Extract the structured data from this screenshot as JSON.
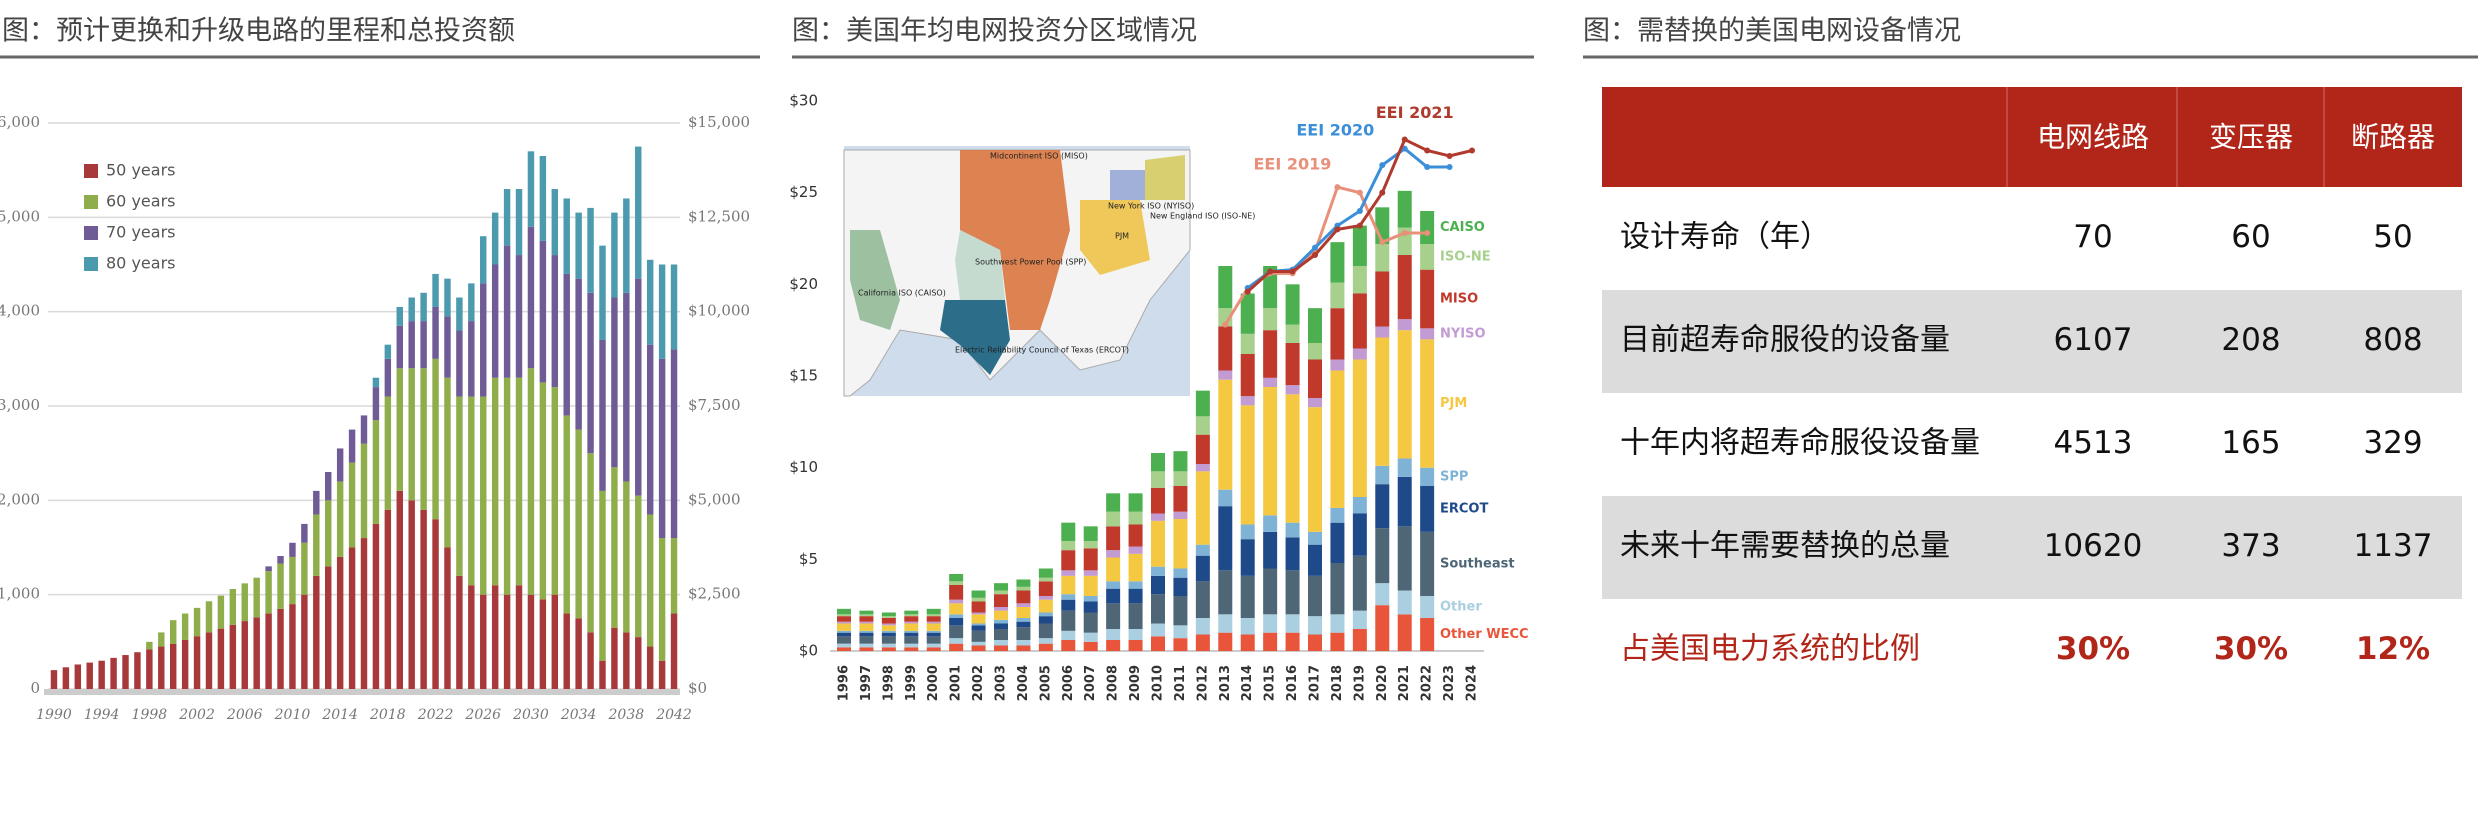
{
  "chart_data": [
    {
      "type": "bar",
      "stacked": true,
      "title": "图：预计更换和升级电路的里程和总投资额",
      "categories": [
        "1990",
        null,
        null,
        null,
        "1994",
        null,
        null,
        null,
        "1998",
        null,
        null,
        null,
        "2002",
        null,
        null,
        null,
        "2006",
        null,
        null,
        null,
        "2010",
        null,
        null,
        null,
        "2014",
        null,
        null,
        null,
        "2018",
        null,
        null,
        null,
        "2022",
        null,
        null,
        null,
        "2026",
        null,
        null,
        null,
        "2030",
        null,
        null,
        null,
        "2034",
        null,
        null,
        null,
        "2038",
        null,
        null,
        null,
        "2042"
      ],
      "series": [
        {
          "name": "50 years",
          "color": "#a8393b",
          "values": [
            200,
            230,
            260,
            280,
            300,
            330,
            360,
            390,
            420,
            450,
            480,
            520,
            560,
            600,
            640,
            680,
            720,
            760,
            800,
            850,
            900,
            1000,
            1200,
            1300,
            1400,
            1500,
            1600,
            1750,
            1900,
            2100,
            2000,
            1900,
            1800,
            1500,
            1200,
            1100,
            1000,
            1100,
            1000,
            1100,
            1000,
            950,
            1000,
            800,
            750,
            600,
            300,
            650,
            600,
            550,
            450,
            300,
            800
          ]
        },
        {
          "name": "60 years",
          "color": "#8fae4b",
          "values": [
            0,
            0,
            0,
            0,
            0,
            0,
            0,
            0,
            80,
            150,
            250,
            280,
            300,
            330,
            350,
            380,
            400,
            420,
            450,
            480,
            500,
            550,
            650,
            700,
            800,
            900,
            1000,
            1100,
            1200,
            1300,
            1400,
            1500,
            1700,
            1800,
            1900,
            2000,
            2100,
            2200,
            2300,
            2200,
            2400,
            2300,
            2200,
            2100,
            2000,
            1900,
            1800,
            1700,
            1600,
            1500,
            1400,
            1300,
            800
          ]
        },
        {
          "name": "70 years",
          "color": "#6f5b95",
          "values": [
            0,
            0,
            0,
            0,
            0,
            0,
            0,
            0,
            0,
            0,
            0,
            0,
            0,
            0,
            0,
            0,
            0,
            0,
            50,
            80,
            150,
            200,
            250,
            300,
            350,
            350,
            300,
            350,
            400,
            450,
            500,
            500,
            550,
            650,
            700,
            800,
            1200,
            1200,
            1400,
            1300,
            1500,
            1500,
            1400,
            1500,
            1600,
            1700,
            1600,
            1800,
            2000,
            2300,
            1800,
            1900,
            2000
          ]
        },
        {
          "name": "80 years",
          "color": "#4b9aae",
          "values": [
            0,
            0,
            0,
            0,
            0,
            0,
            0,
            0,
            0,
            0,
            0,
            0,
            0,
            0,
            0,
            0,
            0,
            0,
            0,
            0,
            0,
            0,
            0,
            0,
            0,
            0,
            0,
            100,
            150,
            200,
            250,
            300,
            350,
            400,
            350,
            400,
            500,
            550,
            600,
            700,
            800,
            900,
            700,
            800,
            700,
            900,
            1000,
            900,
            1000,
            1400,
            900,
            1000,
            900
          ]
        }
      ],
      "ylim": [
        0,
        6000
      ],
      "yticks": [
        0,
        {
          "value": 1000,
          "label": "1,000"
        },
        {
          "value": 2000,
          "label": "2,000"
        },
        {
          "value": 3000,
          "label": "3,000"
        },
        {
          "value": 4000,
          "label": "4,000"
        },
        {
          "value": 5000,
          "label": "5,000"
        },
        {
          "value": 6000,
          "label": "6,000"
        }
      ],
      "y2lim": [
        0,
        15000
      ],
      "y2ticks": [
        {
          "value": 0,
          "label": "$0"
        },
        {
          "value": 2500,
          "label": "$2,500"
        },
        {
          "value": 5000,
          "label": "$5,000"
        },
        {
          "value": 7500,
          "label": "$7,500"
        },
        {
          "value": 10000,
          "label": "$10,000"
        },
        {
          "value": 12500,
          "label": "$12,500"
        },
        {
          "value": 15000,
          "label": "$15,000"
        }
      ],
      "grid": true,
      "legend": "upper left"
    },
    {
      "type": "bar",
      "stacked": true,
      "title": "图：美国年均电网投资分区域情况",
      "categories": [
        "1996",
        "1997",
        "1998",
        "1999",
        "2000",
        "2001",
        "2002",
        "2003",
        "2004",
        "2005",
        "2006",
        "2007",
        "2008",
        "2009",
        "2010",
        "2011",
        "2012",
        "2013",
        "2014",
        "2015",
        "2016",
        "2017",
        "2018",
        "2019",
        "2020",
        "2021",
        "2022",
        "2023",
        "2024"
      ],
      "series": [
        {
          "name": "Other WECC",
          "type": "bar",
          "color": "#e8553a",
          "values": [
            0.2,
            0.2,
            0.2,
            0.2,
            0.2,
            0.4,
            0.3,
            0.3,
            0.3,
            0.4,
            0.6,
            0.5,
            0.6,
            0.6,
            0.8,
            0.7,
            0.9,
            1.0,
            0.9,
            1.0,
            1.0,
            0.9,
            1.0,
            1.2,
            2.5,
            2.0,
            1.8,
            null,
            null
          ]
        },
        {
          "name": "Other",
          "type": "bar",
          "color": "#a9cfe0",
          "values": [
            0.2,
            0.2,
            0.2,
            0.2,
            0.2,
            0.3,
            0.2,
            0.3,
            0.3,
            0.3,
            0.5,
            0.5,
            0.6,
            0.6,
            0.7,
            0.7,
            0.9,
            1.0,
            0.9,
            1.0,
            1.0,
            1.0,
            1.0,
            1.0,
            1.2,
            1.3,
            1.2,
            null,
            null
          ]
        },
        {
          "name": "Southeast",
          "type": "bar",
          "color": "#4e6676",
          "values": [
            0.4,
            0.4,
            0.4,
            0.4,
            0.4,
            0.7,
            0.6,
            0.6,
            0.7,
            0.8,
            1.1,
            1.1,
            1.4,
            1.4,
            1.6,
            1.6,
            2.0,
            2.4,
            2.3,
            2.5,
            2.4,
            2.2,
            2.8,
            3.0,
            3.0,
            3.5,
            3.5,
            null,
            null
          ]
        },
        {
          "name": "ERCOT",
          "type": "bar",
          "color": "#1f4a8a",
          "values": [
            0.2,
            0.2,
            0.2,
            0.2,
            0.2,
            0.4,
            0.3,
            0.3,
            0.3,
            0.4,
            0.6,
            0.6,
            0.8,
            0.8,
            1.0,
            1.0,
            1.4,
            3.5,
            2.0,
            2.0,
            1.8,
            1.7,
            2.2,
            2.3,
            2.4,
            2.7,
            2.5,
            null,
            null
          ]
        },
        {
          "name": "SPP",
          "type": "bar",
          "color": "#7fb3d5",
          "values": [
            0.1,
            0.1,
            0.1,
            0.1,
            0.1,
            0.2,
            0.1,
            0.2,
            0.2,
            0.2,
            0.3,
            0.3,
            0.4,
            0.4,
            0.5,
            0.5,
            0.6,
            0.9,
            0.8,
            0.9,
            0.8,
            0.7,
            0.8,
            0.9,
            1.0,
            1.0,
            1.0,
            null,
            null
          ]
        },
        {
          "name": "PJM",
          "type": "bar",
          "color": "#f5c842",
          "values": [
            0.4,
            0.4,
            0.3,
            0.4,
            0.4,
            0.6,
            0.5,
            0.5,
            0.6,
            0.7,
            1.0,
            1.1,
            1.3,
            1.5,
            2.5,
            2.7,
            4.0,
            6.0,
            6.5,
            7.0,
            7.0,
            6.8,
            7.5,
            7.5,
            7.0,
            7.0,
            7.0,
            null,
            null
          ]
        },
        {
          "name": "NYISO",
          "type": "bar",
          "color": "#c39bd3",
          "values": [
            0.1,
            0.1,
            0.1,
            0.1,
            0.1,
            0.2,
            0.1,
            0.2,
            0.2,
            0.2,
            0.3,
            0.3,
            0.4,
            0.4,
            0.4,
            0.4,
            0.4,
            0.5,
            0.5,
            0.5,
            0.5,
            0.5,
            0.6,
            0.6,
            0.6,
            0.6,
            0.6,
            null,
            null
          ]
        },
        {
          "name": "MISO",
          "type": "bar",
          "color": "#c0392b",
          "values": [
            0.3,
            0.3,
            0.3,
            0.3,
            0.3,
            0.8,
            0.6,
            0.7,
            0.7,
            0.8,
            1.1,
            1.2,
            1.3,
            1.2,
            1.4,
            1.4,
            1.6,
            2.4,
            2.3,
            2.6,
            2.3,
            2.1,
            2.8,
            3.0,
            3.0,
            3.5,
            3.2,
            null,
            null
          ]
        },
        {
          "name": "ISO-NE",
          "type": "bar",
          "color": "#a8d08d",
          "values": [
            0.1,
            0.1,
            0.1,
            0.1,
            0.1,
            0.2,
            0.2,
            0.2,
            0.2,
            0.2,
            0.5,
            0.4,
            0.8,
            0.7,
            0.9,
            0.8,
            1.0,
            1.0,
            1.1,
            1.2,
            1.0,
            0.9,
            1.4,
            1.5,
            1.5,
            1.5,
            1.4,
            null,
            null
          ]
        },
        {
          "name": "CAISO",
          "type": "bar",
          "color": "#4caf50",
          "values": [
            0.3,
            0.2,
            0.2,
            0.2,
            0.3,
            0.4,
            0.4,
            0.4,
            0.4,
            0.5,
            1.0,
            0.8,
            1.0,
            1.0,
            1.0,
            1.1,
            1.4,
            2.3,
            2.2,
            2.3,
            2.2,
            1.9,
            2.2,
            2.2,
            2.0,
            2.0,
            1.8,
            null,
            null
          ]
        },
        {
          "name": "EEI 2019",
          "type": "line",
          "color": "#e8907a",
          "values": [
            null,
            null,
            null,
            null,
            null,
            null,
            null,
            null,
            null,
            null,
            null,
            null,
            null,
            null,
            null,
            null,
            null,
            17.8,
            19.8,
            20.6,
            20.6,
            21.8,
            25.3,
            25.0,
            22.3,
            22.8,
            22.8,
            null,
            null
          ]
        },
        {
          "name": "EEI 2020",
          "type": "line",
          "color": "#3b8fd9",
          "values": [
            null,
            null,
            null,
            null,
            null,
            null,
            null,
            null,
            null,
            null,
            null,
            null,
            null,
            null,
            null,
            null,
            null,
            null,
            19.8,
            20.7,
            20.8,
            22.0,
            23.2,
            24.0,
            26.5,
            27.4,
            26.4,
            26.4,
            null
          ]
        },
        {
          "name": "EEI 2021",
          "type": "line",
          "color": "#b03a2e",
          "values": [
            null,
            null,
            null,
            null,
            null,
            null,
            null,
            null,
            null,
            null,
            null,
            null,
            null,
            null,
            null,
            null,
            null,
            null,
            19.6,
            20.7,
            20.7,
            21.6,
            23.0,
            23.2,
            25.0,
            27.9,
            27.3,
            27.0,
            27.3
          ]
        }
      ],
      "ylim": [
        0,
        30
      ],
      "yticks": [
        {
          "value": 0,
          "label": "$0"
        },
        {
          "value": 5,
          "label": "$5"
        },
        {
          "value": 10,
          "label": "$10"
        },
        {
          "value": 15,
          "label": "$15"
        },
        {
          "value": 20,
          "label": "$20"
        },
        {
          "value": 25,
          "label": "$25"
        },
        {
          "value": 30,
          "label": "$30"
        }
      ],
      "grid": false,
      "legend": "right",
      "map_labels": [
        "Midcontinent ISO (MISO)",
        "New York ISO (NYISO)",
        "New England ISO (ISO-NE)",
        "PJM",
        "Southwest Power Pool (SPP)",
        "California ISO (CAISO)",
        "Electric Reliability Council of Texas (ERCOT)"
      ]
    }
  ],
  "table": {
    "title": "图：需替换的美国电网设备情况",
    "columns": [
      "电网线路",
      "变压器",
      "断路器"
    ],
    "rows": [
      {
        "label": "设计寿命（年）",
        "cells": [
          70,
          60,
          50
        ]
      },
      {
        "label": "目前超寿命服役的设备量",
        "cells": [
          6107,
          208,
          808
        ]
      },
      {
        "label": "十年内将超寿命服役设备量",
        "cells": [
          4513,
          165,
          329
        ]
      },
      {
        "label": "未来十年需要替换的总量",
        "cells": [
          10620,
          373,
          1137
        ]
      },
      {
        "label": "占美国电力系统的比例",
        "cells": [
          "30%",
          "30%",
          "12%"
        ]
      }
    ]
  }
}
